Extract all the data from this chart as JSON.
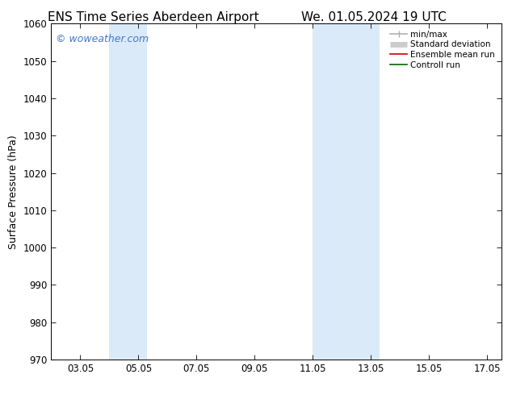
{
  "title_left": "ENS Time Series Aberdeen Airport",
  "title_right": "We. 01.05.2024 19 UTC",
  "ylabel": "Surface Pressure (hPa)",
  "ylim": [
    970,
    1060
  ],
  "yticks": [
    970,
    980,
    990,
    1000,
    1010,
    1020,
    1030,
    1040,
    1050,
    1060
  ],
  "xticks": [
    "03.05",
    "05.05",
    "07.05",
    "09.05",
    "11.05",
    "13.05",
    "15.05",
    "17.05"
  ],
  "xtick_positions": [
    3,
    5,
    7,
    9,
    11,
    13,
    15,
    17
  ],
  "xlim": [
    2.0,
    17.5
  ],
  "watermark": "© woweather.com",
  "watermark_color": "#4477cc",
  "background_color": "#ffffff",
  "plot_background": "#ffffff",
  "shaded_bands": [
    {
      "x_start": 4.0,
      "x_end": 5.3
    },
    {
      "x_start": 11.0,
      "x_end": 13.3
    }
  ],
  "band_color": "#daeaf8",
  "legend_entries": [
    {
      "label": "min/max",
      "color": "#b0b0b0",
      "lw": 1.2
    },
    {
      "label": "Standard deviation",
      "color": "#cccccc",
      "lw": 5
    },
    {
      "label": "Ensemble mean run",
      "color": "#cc0000",
      "lw": 1.2
    },
    {
      "label": "Controll run",
      "color": "#006600",
      "lw": 1.2
    }
  ],
  "title_fontsize": 11,
  "ylabel_fontsize": 9,
  "tick_fontsize": 8.5,
  "legend_fontsize": 7.5,
  "watermark_fontsize": 9
}
